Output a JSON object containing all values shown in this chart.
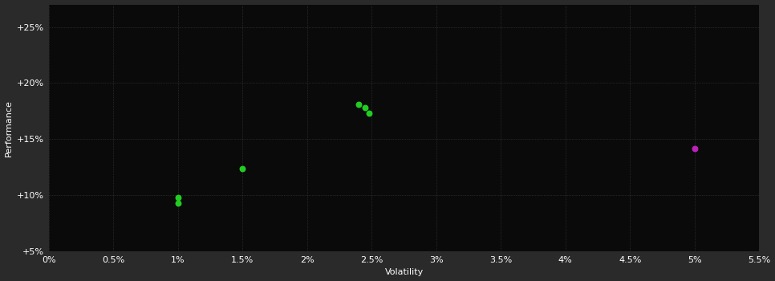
{
  "background_color": "#2a2a2a",
  "plot_bg_color": "#0a0a0a",
  "grid_color": "#404040",
  "text_color": "#ffffff",
  "xlabel": "Volatility",
  "ylabel": "Performance",
  "xlim": [
    0.0,
    0.055
  ],
  "ylim": [
    0.05,
    0.27
  ],
  "xticks": [
    0.0,
    0.005,
    0.01,
    0.015,
    0.02,
    0.025,
    0.03,
    0.035,
    0.04,
    0.045,
    0.05,
    0.055
  ],
  "yticks": [
    0.05,
    0.1,
    0.15,
    0.2,
    0.25
  ],
  "green_points": [
    [
      0.01,
      0.098
    ],
    [
      0.01,
      0.093
    ],
    [
      0.015,
      0.124
    ],
    [
      0.024,
      0.181
    ],
    [
      0.0245,
      0.178
    ],
    [
      0.0248,
      0.173
    ]
  ],
  "magenta_points": [
    [
      0.05,
      0.142
    ]
  ],
  "green_color": "#22cc22",
  "magenta_color": "#bb22bb",
  "point_size": 22
}
